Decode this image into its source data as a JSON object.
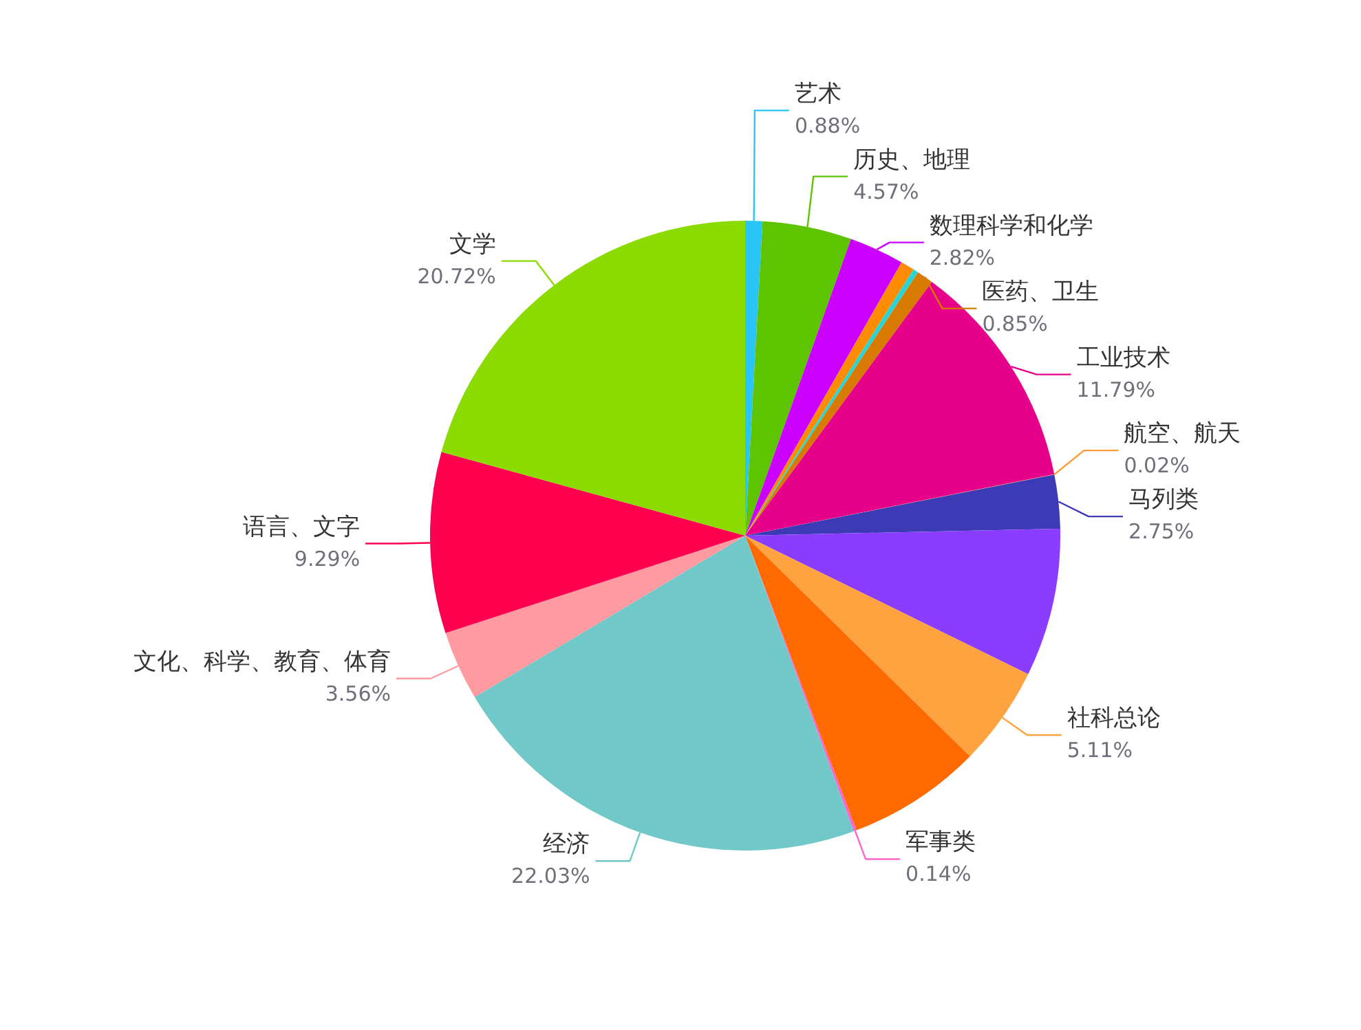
{
  "chart_data": {
    "type": "pie",
    "categories": [
      "艺术",
      "历史、地理",
      "数理科学和化学",
      null,
      null,
      "医药、卫生",
      "工业技术",
      "航空、航天",
      "马列类",
      null,
      "社科总论",
      null,
      "军事类",
      "经济",
      "文化、科学、教育、体育",
      "语言、文字",
      "文学"
    ],
    "values": [
      0.88,
      4.57,
      2.82,
      0.7,
      0.27,
      0.85,
      11.79,
      0.02,
      2.75,
      7.6,
      5.11,
      6.9,
      0.14,
      22.03,
      3.56,
      9.29,
      20.72
    ],
    "value_labels": [
      "0.88%",
      "4.57%",
      "2.82%",
      null,
      null,
      "0.85%",
      "11.79%",
      "0.02%",
      "2.75%",
      null,
      "5.11%",
      null,
      "0.14%",
      "22.03%",
      "3.56%",
      "9.29%",
      "20.72%"
    ],
    "colors": [
      "#29c5f6",
      "#5ec400",
      "#cc00ff",
      "#ff8c00",
      "#2ad4d4",
      "#d97a00",
      "#e6008a",
      "#ff9933",
      "#3d3ab5",
      "#8a3cff",
      "#ffa340",
      "#ff6a00",
      "#ff66cc",
      "#70c8c8",
      "#ff9aa0",
      "#ff0050",
      "#8cdb00"
    ]
  }
}
